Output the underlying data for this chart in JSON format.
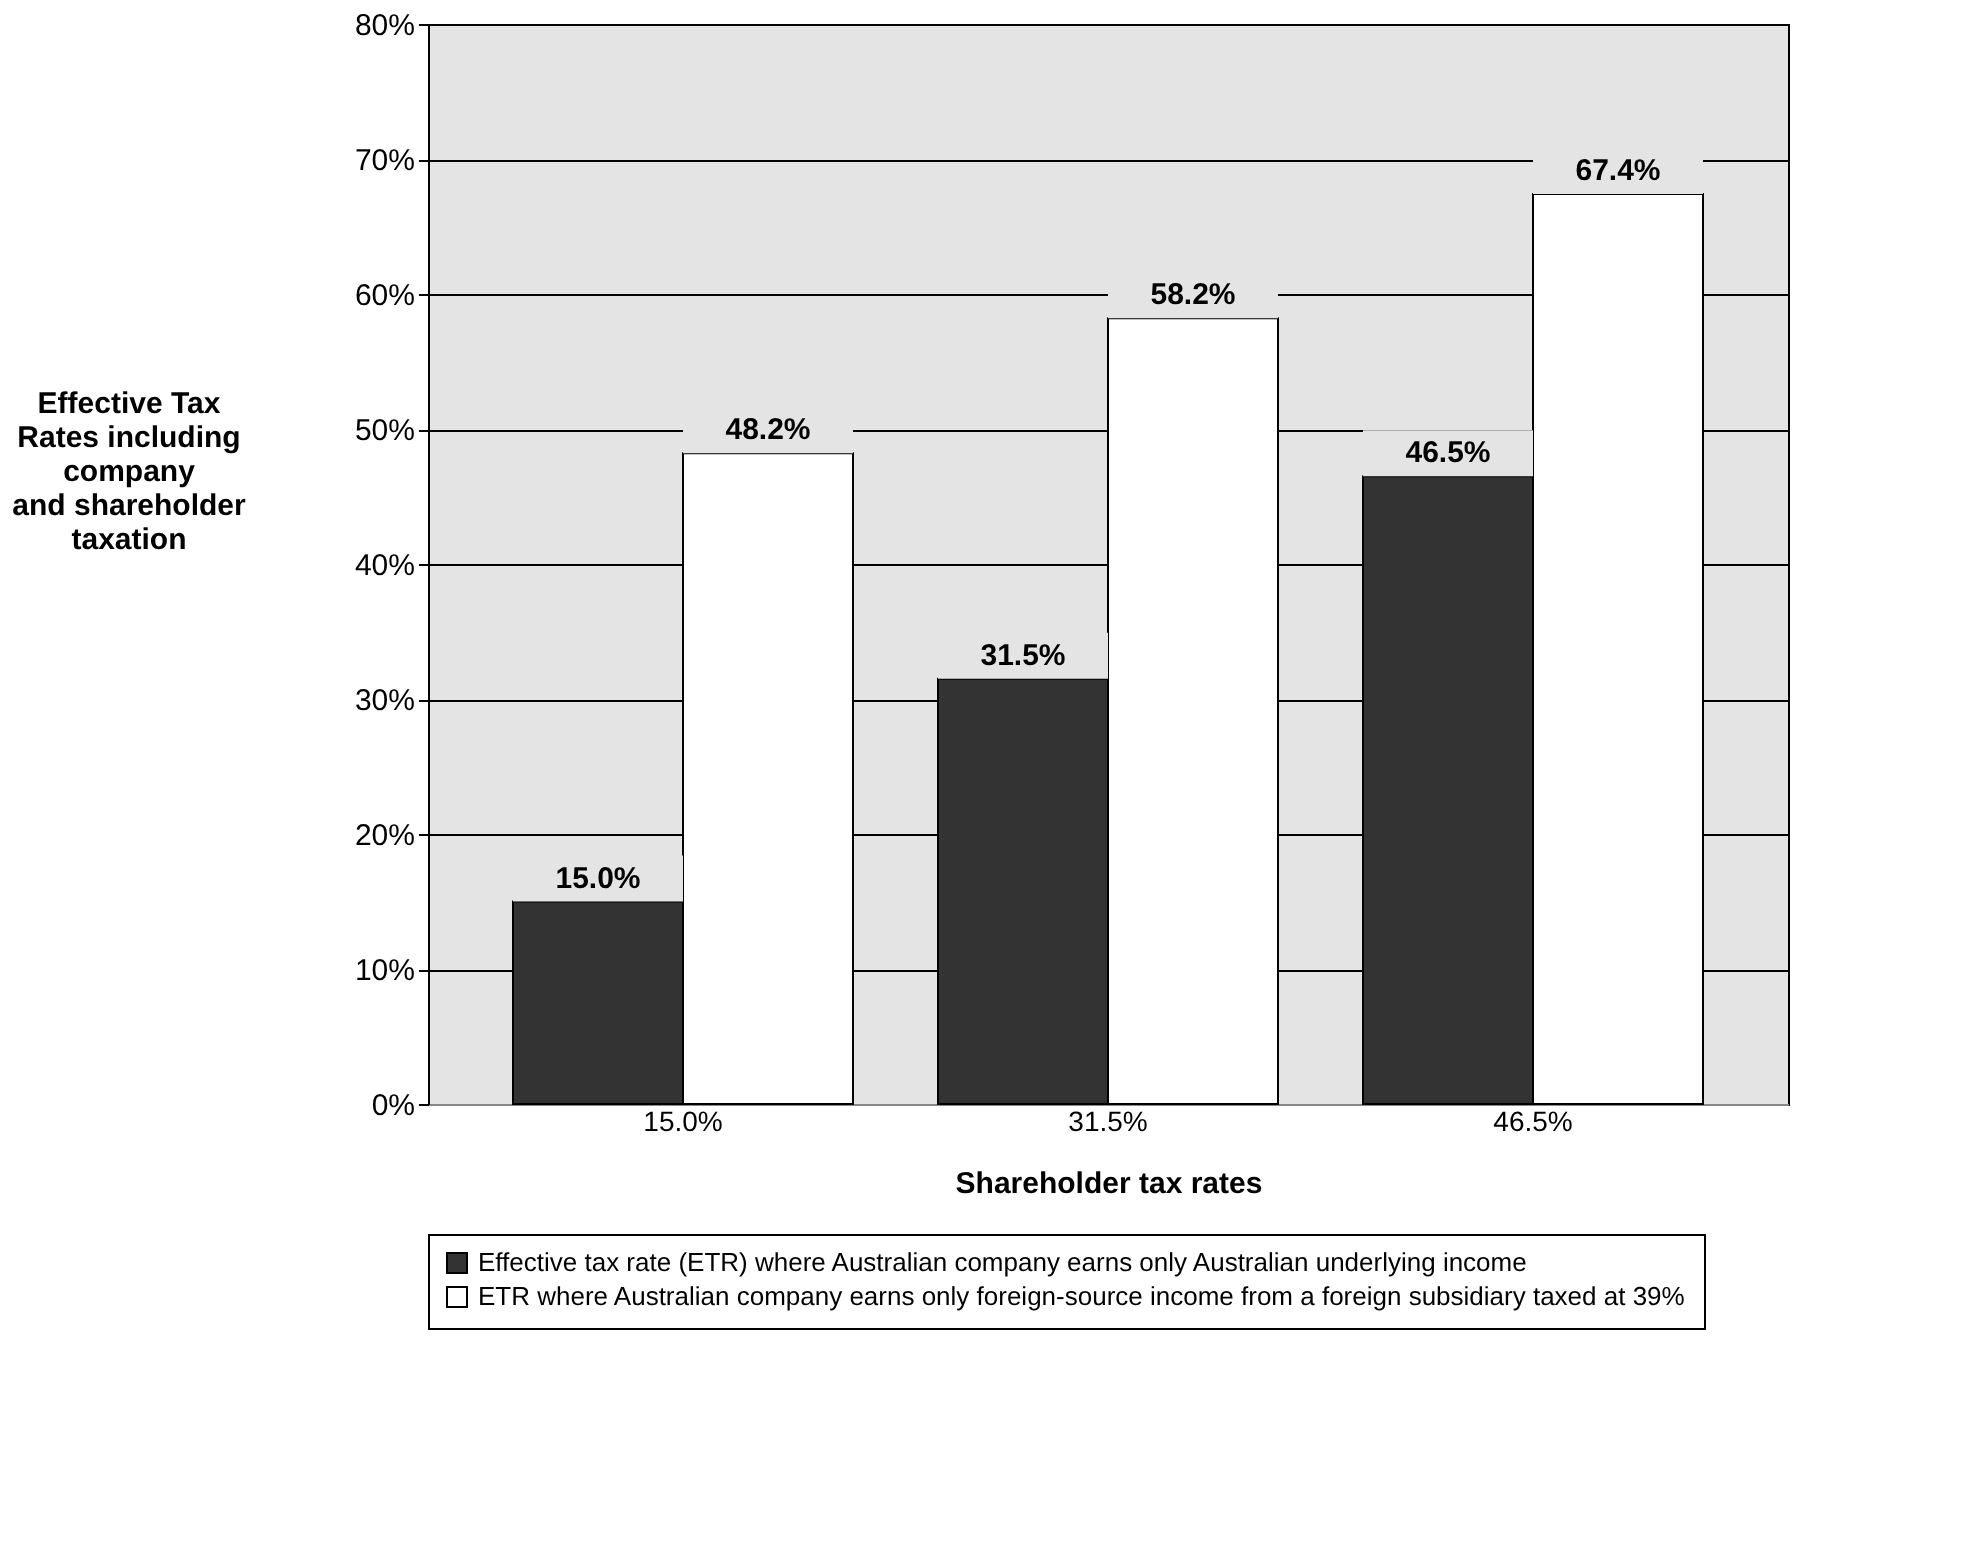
{
  "chart_data": {
    "type": "bar",
    "xlabel": "Shareholder tax rates",
    "ylabel": "Effective Tax\nRates including\ncompany\nand shareholder\ntaxation",
    "categories": [
      "15.0%",
      "31.5%",
      "46.5%"
    ],
    "series": [
      {
        "name": "Effective tax rate (ETR) where Australian company earns only Australian underlying income",
        "color": "#333333",
        "values": [
          15.0,
          31.5,
          46.5
        ],
        "value_labels": [
          "15.0%",
          "31.5%",
          "46.5%"
        ]
      },
      {
        "name": "ETR where Australian company earns only foreign-source income from a foreign subsidiary taxed at 39%",
        "color": "#ffffff",
        "values": [
          48.2,
          58.2,
          67.4
        ],
        "value_labels": [
          "48.2%",
          "58.2%",
          "67.4%"
        ]
      }
    ],
    "ylim": [
      0,
      80
    ],
    "yticks": [
      {
        "value": 0,
        "label": "0%"
      },
      {
        "value": 10,
        "label": "10%"
      },
      {
        "value": 20,
        "label": "20%"
      },
      {
        "value": 30,
        "label": "30%"
      },
      {
        "value": 40,
        "label": "40%"
      },
      {
        "value": 50,
        "label": "50%"
      },
      {
        "value": 60,
        "label": "60%"
      },
      {
        "value": 70,
        "label": "70%"
      },
      {
        "value": 80,
        "label": "80%"
      }
    ],
    "grid": "y",
    "legend": "bottom"
  }
}
